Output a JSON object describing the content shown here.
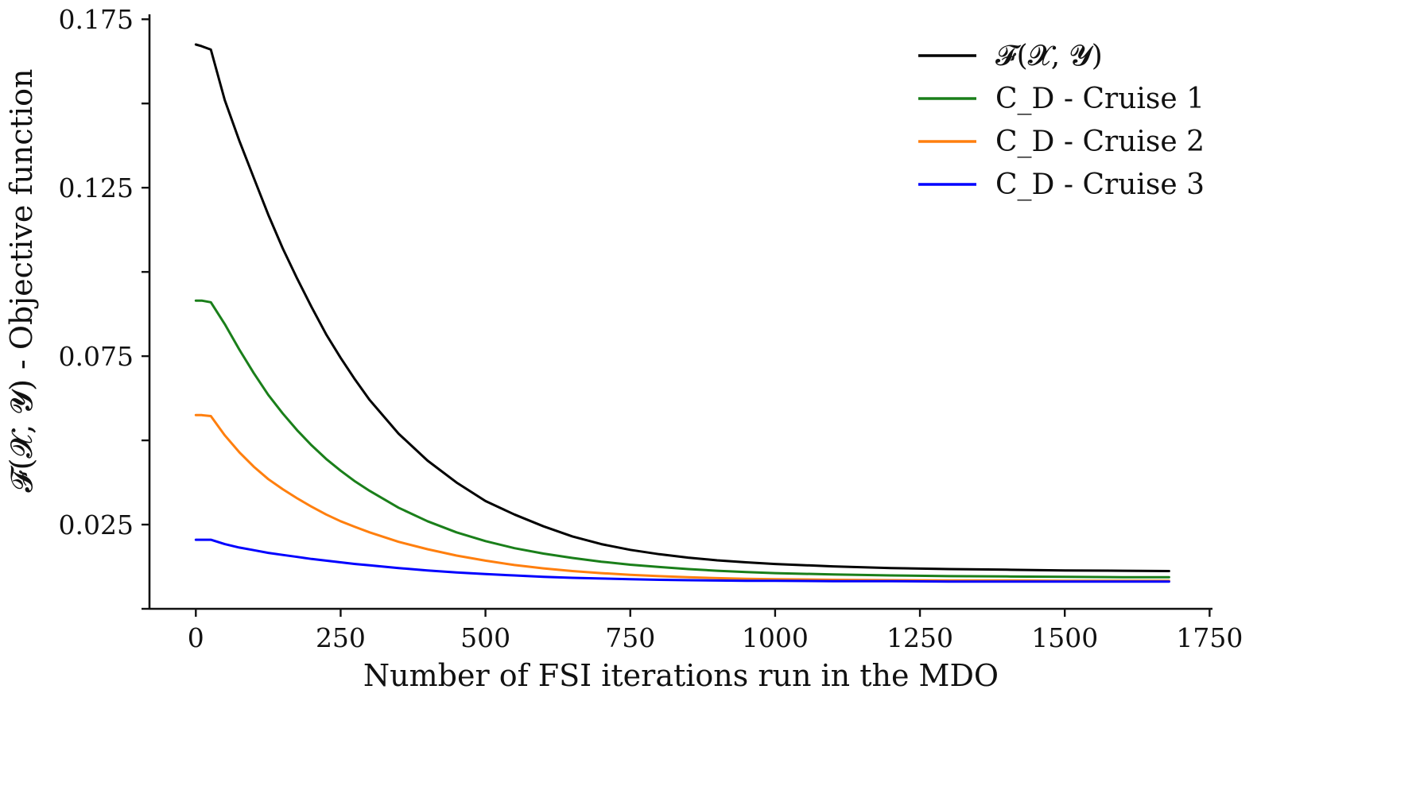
{
  "chart_data": {
    "type": "line",
    "xlabel": "Number of FSI iterations run in the MDO",
    "ylabel": "𝓕(𝓧, 𝓨) - Objective function",
    "xlim": [
      -80,
      1755
    ],
    "ylim": [
      0.0,
      0.176
    ],
    "x_ticks": [
      0,
      250,
      500,
      750,
      1000,
      1250,
      1500,
      1750
    ],
    "x_tick_labels": [
      "0",
      "250",
      "500",
      "750",
      "1000",
      "1250",
      "1500",
      "1750"
    ],
    "y_ticks": [
      0.0,
      0.025,
      0.05,
      0.075,
      0.1,
      0.125,
      0.15,
      0.175
    ],
    "y_tick_labels": [
      "",
      "0.025",
      "",
      "0.075",
      "",
      "0.125",
      "",
      "0.175"
    ],
    "grid": false,
    "legend_position": "top-right",
    "series": [
      {
        "name": "𝓕(𝓧, 𝓨)",
        "color": "#000000",
        "x": [
          0,
          10,
          26,
          50,
          75,
          100,
          125,
          150,
          175,
          200,
          225,
          250,
          275,
          300,
          350,
          400,
          450,
          500,
          550,
          600,
          650,
          700,
          750,
          800,
          850,
          900,
          950,
          1000,
          1100,
          1200,
          1300,
          1400,
          1500,
          1600,
          1680
        ],
        "values": [
          0.1675,
          0.167,
          0.166,
          0.151,
          0.139,
          0.128,
          0.117,
          0.107,
          0.098,
          0.0895,
          0.0815,
          0.0745,
          0.068,
          0.062,
          0.052,
          0.044,
          0.0375,
          0.032,
          0.028,
          0.0245,
          0.0215,
          0.0192,
          0.0175,
          0.0162,
          0.0152,
          0.0144,
          0.0138,
          0.0133,
          0.0126,
          0.0121,
          0.0118,
          0.0116,
          0.0114,
          0.0113,
          0.0112
        ]
      },
      {
        "name": "C_D - Cruise 1",
        "color": "#1a7f1a",
        "x": [
          0,
          10,
          26,
          50,
          75,
          100,
          125,
          150,
          175,
          200,
          225,
          250,
          275,
          300,
          350,
          400,
          450,
          500,
          550,
          600,
          650,
          700,
          750,
          800,
          850,
          900,
          950,
          1000,
          1100,
          1200,
          1300,
          1400,
          1500,
          1600,
          1680
        ],
        "values": [
          0.0915,
          0.0915,
          0.091,
          0.0845,
          0.077,
          0.07,
          0.0635,
          0.058,
          0.053,
          0.0485,
          0.0445,
          0.041,
          0.0378,
          0.035,
          0.03,
          0.026,
          0.0227,
          0.0201,
          0.018,
          0.0164,
          0.0151,
          0.014,
          0.0131,
          0.0124,
          0.0118,
          0.0113,
          0.0109,
          0.0106,
          0.0102,
          0.0099,
          0.0097,
          0.0096,
          0.0095,
          0.0094,
          0.0094
        ]
      },
      {
        "name": "C_D - Cruise 2",
        "color": "#ff7f0e",
        "x": [
          0,
          10,
          26,
          50,
          75,
          100,
          125,
          150,
          175,
          200,
          225,
          250,
          275,
          300,
          350,
          400,
          450,
          500,
          550,
          600,
          650,
          700,
          750,
          800,
          850,
          900,
          950,
          1000,
          1100,
          1200,
          1300,
          1400,
          1500,
          1600,
          1680
        ],
        "values": [
          0.0575,
          0.0575,
          0.0572,
          0.0515,
          0.0465,
          0.0422,
          0.0385,
          0.0355,
          0.0328,
          0.0303,
          0.028,
          0.026,
          0.0243,
          0.0227,
          0.0199,
          0.0177,
          0.0158,
          0.0143,
          0.013,
          0.012,
          0.0112,
          0.0106,
          0.0101,
          0.0097,
          0.0094,
          0.0091,
          0.0089,
          0.0088,
          0.0086,
          0.0085,
          0.0084,
          0.0084,
          0.0083,
          0.0083,
          0.0083
        ]
      },
      {
        "name": "C_D - Cruise 3",
        "color": "#0000ff",
        "x": [
          0,
          10,
          26,
          50,
          75,
          100,
          125,
          150,
          175,
          200,
          225,
          250,
          275,
          300,
          350,
          400,
          450,
          500,
          550,
          600,
          650,
          700,
          750,
          800,
          850,
          900,
          950,
          1000,
          1100,
          1200,
          1300,
          1400,
          1500,
          1600,
          1680
        ],
        "values": [
          0.0205,
          0.0205,
          0.0205,
          0.0192,
          0.0182,
          0.0174,
          0.0166,
          0.016,
          0.0154,
          0.0148,
          0.0143,
          0.0138,
          0.0133,
          0.0129,
          0.0121,
          0.0114,
          0.0108,
          0.0103,
          0.0099,
          0.0095,
          0.0092,
          0.009,
          0.0088,
          0.0086,
          0.0085,
          0.0084,
          0.0083,
          0.0083,
          0.0082,
          0.0082,
          0.0081,
          0.0081,
          0.0081,
          0.0081,
          0.0081
        ]
      }
    ]
  }
}
